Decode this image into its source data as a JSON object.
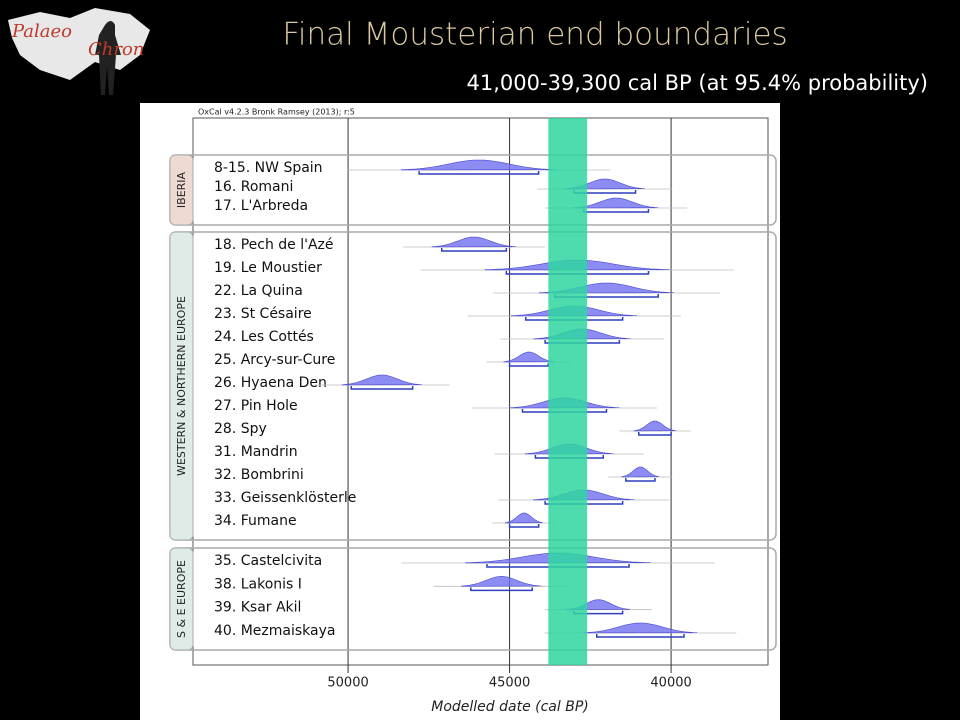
{
  "logo": {
    "line1": "Palaeo",
    "line2": "Chron"
  },
  "chart_data": {
    "type": "range",
    "title": "Final Mousterian end boundaries",
    "subtitle": "41,000-39,300 cal BP (at 95.4% probability)",
    "note": "OxCal v4.2.3 Bronk Ramsey (2013); r:5",
    "xlabel": "Modelled date (cal BP)",
    "xlim": [
      54800,
      37000
    ],
    "xticks": [
      50000,
      45000,
      40000
    ],
    "highlight": [
      43800,
      42600
    ],
    "highlight_color": "#2fd6a0",
    "color": "#6f6ff0",
    "grid": true,
    "groups": [
      {
        "label": "IBERIA",
        "categories": [
          "8-15. NW Spain",
          "16. Romani",
          "17. L'Arbreda"
        ],
        "ranges": [
          [
            47800,
            44100
          ],
          [
            43000,
            41100
          ],
          [
            42700,
            40700
          ]
        ]
      },
      {
        "label": "WESTERN & NORTHERN EUROPE",
        "categories": [
          "18. Pech de l'Azé",
          "19. Le Moustier",
          "22. La Quina",
          "23. St Césaire",
          "24. Les Cottés",
          "25. Arcy-sur-Cure",
          "26. Hyaena Den",
          "27. Pin Hole",
          "28. Spy",
          "31. Mandrin",
          "32. Bombrini",
          "33. Geissenklösterle",
          "34. Fumane"
        ],
        "ranges": [
          [
            47100,
            45100
          ],
          [
            45100,
            40700
          ],
          [
            43600,
            40400
          ],
          [
            44500,
            41500
          ],
          [
            43900,
            41600
          ],
          [
            45000,
            43800
          ],
          [
            49900,
            48000
          ],
          [
            44600,
            42000
          ],
          [
            41000,
            40000
          ],
          [
            44200,
            42100
          ],
          [
            41400,
            40500
          ],
          [
            43900,
            41500
          ],
          [
            45000,
            44100
          ]
        ]
      },
      {
        "label": "S & E EUROPE",
        "categories": [
          "35. Castelcivita",
          "38. Lakonis I",
          "39. Ksar Akil",
          "40. Mezmaiskaya"
        ],
        "ranges": [
          [
            45700,
            41300
          ],
          [
            46200,
            44300
          ],
          [
            43000,
            41500
          ],
          [
            42300,
            39600
          ]
        ]
      }
    ]
  }
}
